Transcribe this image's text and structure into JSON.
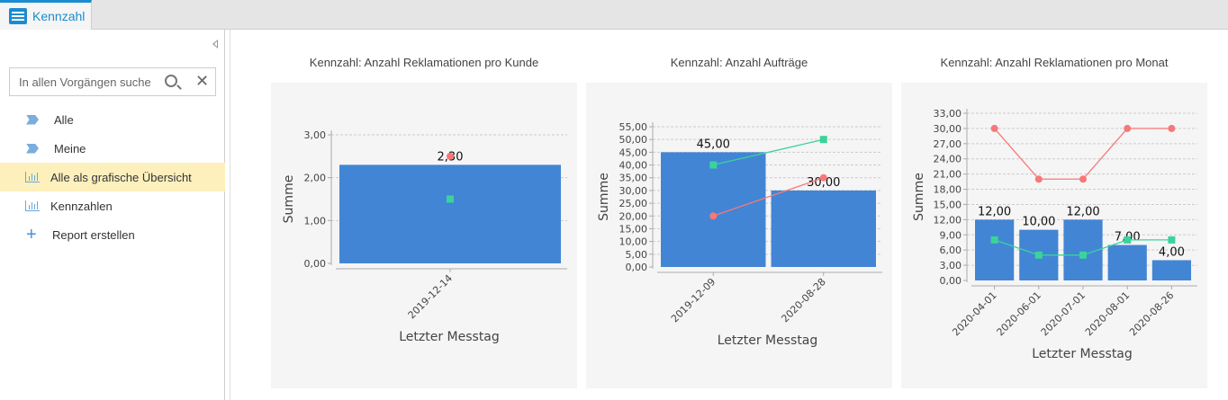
{
  "tab": {
    "label": "Kennzahl",
    "icon": "list-icon"
  },
  "sidebar": {
    "search_placeholder": "In allen Vorgängen suchen",
    "items": [
      {
        "label": "Alle",
        "icon": "tag-icon"
      },
      {
        "label": "Meine",
        "icon": "tag-icon"
      },
      {
        "label": "Alle als grafische Übersicht",
        "icon": "bar-chart-icon",
        "selected": true
      },
      {
        "label": "Kennzahlen",
        "icon": "bar-chart-icon"
      },
      {
        "label": "Report erstellen",
        "icon": "plus-icon"
      }
    ]
  },
  "colors": {
    "bar": "#4285d4",
    "red": "#f87878",
    "green": "#3ad39a",
    "accent": "#1a8ccf",
    "selected": "#fdf0bd"
  },
  "chart_data": [
    {
      "type": "bar",
      "title": "Kennzahl: Anzahl Reklamationen pro Kunde",
      "xlabel": "Letzter Messtag",
      "ylabel": "Summe",
      "ylim": [
        0,
        3
      ],
      "yticks": [
        "0,00",
        "1,00",
        "2,00",
        "3,00"
      ],
      "categories": [
        "2019-12-14"
      ],
      "series": [
        {
          "name": "bar",
          "type": "bar",
          "values": [
            2.3
          ],
          "labels": [
            "2,30"
          ]
        },
        {
          "name": "red",
          "type": "line",
          "values": [
            2.5
          ]
        },
        {
          "name": "green",
          "type": "line",
          "values": [
            1.5
          ]
        }
      ]
    },
    {
      "type": "bar",
      "title": "Kennzahl: Anzahl Aufträge",
      "xlabel": "Letzter Messtag",
      "ylabel": "Summe",
      "ylim": [
        0,
        55
      ],
      "yticks": [
        "0,00",
        "5,00",
        "10,00",
        "15,00",
        "20,00",
        "25,00",
        "30,00",
        "35,00",
        "40,00",
        "45,00",
        "50,00",
        "55,00"
      ],
      "categories": [
        "2019-12-09",
        "2020-08-28"
      ],
      "series": [
        {
          "name": "bar",
          "type": "bar",
          "values": [
            45,
            30
          ],
          "labels": [
            "45,00",
            "30,00"
          ]
        },
        {
          "name": "red",
          "type": "line",
          "values": [
            20,
            35
          ]
        },
        {
          "name": "green",
          "type": "line",
          "values": [
            40,
            50
          ]
        }
      ]
    },
    {
      "type": "bar",
      "title": "Kennzahl: Anzahl Reklamationen pro Monat",
      "xlabel": "Letzter Messtag",
      "ylabel": "Summe",
      "ylim": [
        0,
        33
      ],
      "yticks": [
        "0,00",
        "3,00",
        "6,00",
        "9,00",
        "12,00",
        "15,00",
        "18,00",
        "21,00",
        "24,00",
        "27,00",
        "30,00",
        "33,00"
      ],
      "categories": [
        "2020-04-01",
        "2020-06-01",
        "2020-07-01",
        "2020-08-01",
        "2020-08-26"
      ],
      "series": [
        {
          "name": "bar",
          "type": "bar",
          "values": [
            12,
            10,
            12,
            7,
            4
          ],
          "labels": [
            "12,00",
            "10,00",
            "12,00",
            "7,00",
            "4,00"
          ]
        },
        {
          "name": "red",
          "type": "line",
          "values": [
            30,
            20,
            20,
            30,
            30
          ]
        },
        {
          "name": "green",
          "type": "line",
          "values": [
            8,
            5,
            5,
            8,
            8
          ]
        }
      ]
    }
  ]
}
